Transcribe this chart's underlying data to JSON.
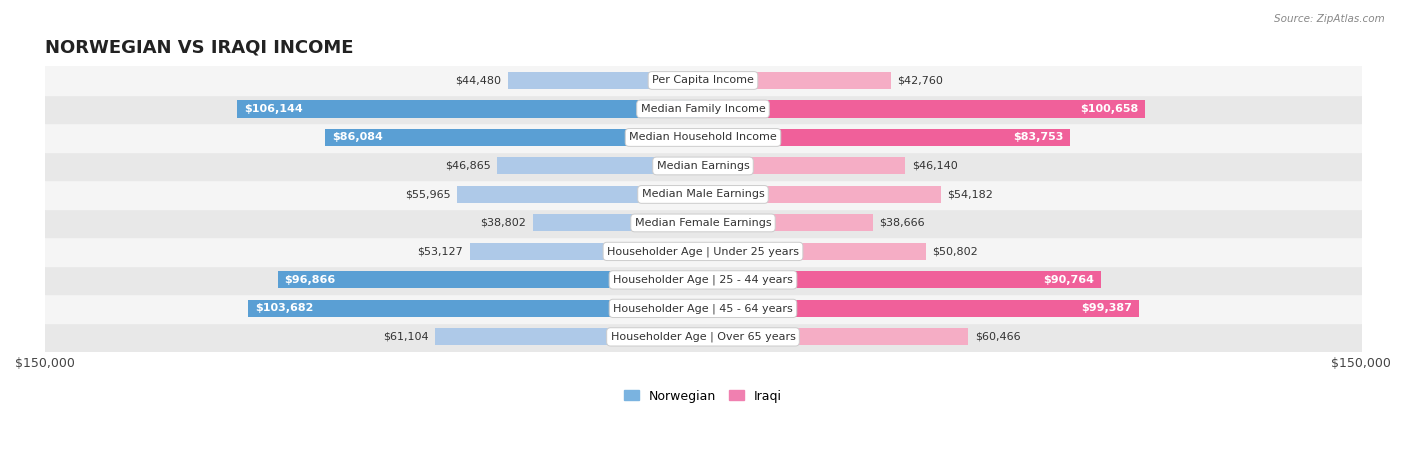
{
  "title": "NORWEGIAN VS IRAQI INCOME",
  "source": "Source: ZipAtlas.com",
  "categories": [
    "Per Capita Income",
    "Median Family Income",
    "Median Household Income",
    "Median Earnings",
    "Median Male Earnings",
    "Median Female Earnings",
    "Householder Age | Under 25 years",
    "Householder Age | 25 - 44 years",
    "Householder Age | 45 - 64 years",
    "Householder Age | Over 65 years"
  ],
  "norwegian_values": [
    44480,
    106144,
    86084,
    46865,
    55965,
    38802,
    53127,
    96866,
    103682,
    61104
  ],
  "iraqi_values": [
    42760,
    100658,
    83753,
    46140,
    54182,
    38666,
    50802,
    90764,
    99387,
    60466
  ],
  "max_value": 150000,
  "norwegian_color_light": "#aec9e8",
  "norwegian_color_dark": "#5a9fd4",
  "iraqi_color_light": "#f5adc5",
  "iraqi_color_dark": "#f0609a",
  "threshold_dark": 80000,
  "bg_row_even": "#e8e8e8",
  "bg_row_odd": "#f5f5f5",
  "x_tick_label": "$150,000",
  "title_fontsize": 13,
  "label_fontsize": 8,
  "cat_fontsize": 8,
  "bar_height": 0.6,
  "legend_norwegian_color": "#7ab3e0",
  "legend_iraqi_color": "#f080b0"
}
